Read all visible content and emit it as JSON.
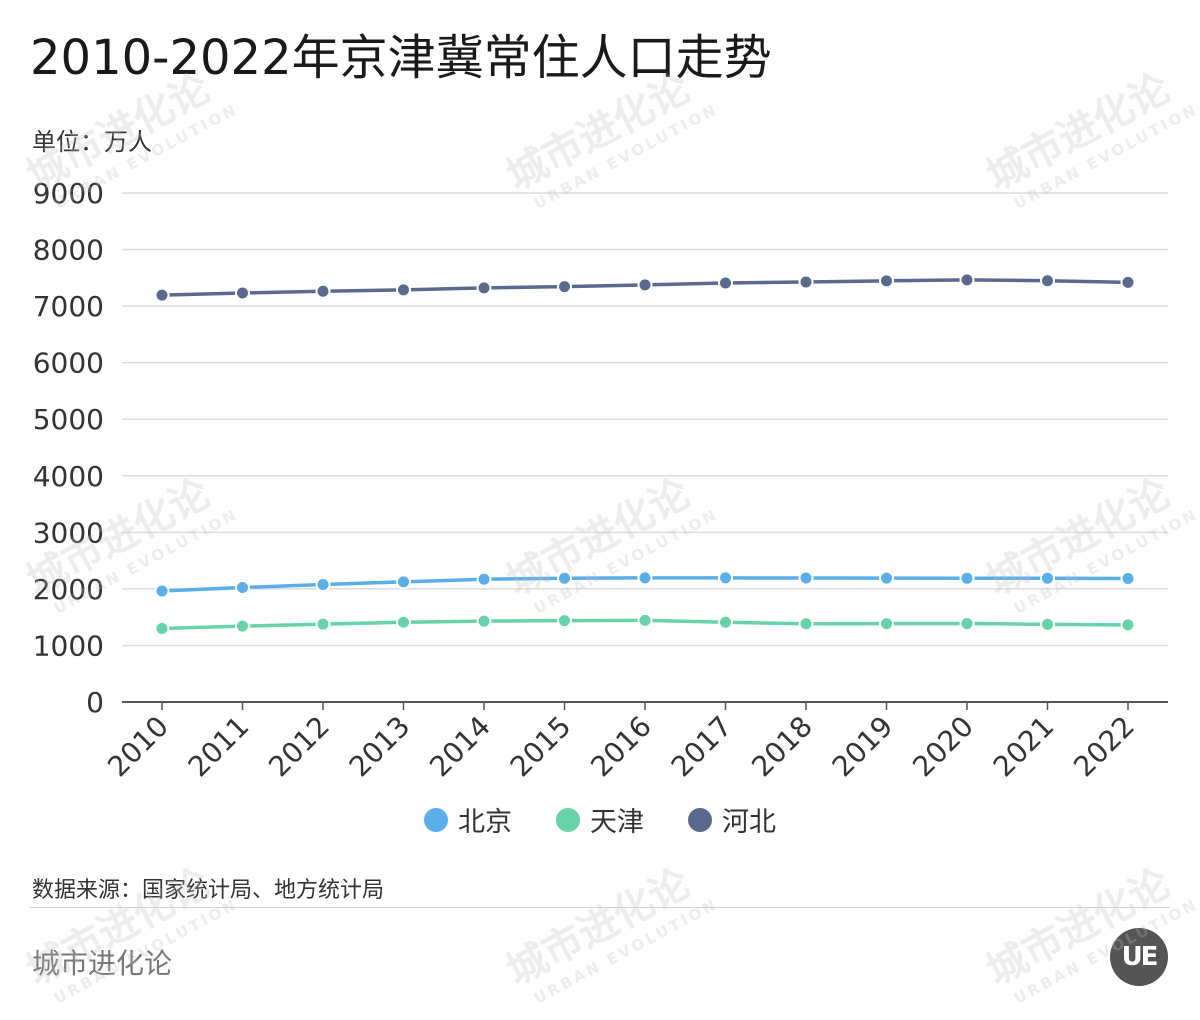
{
  "header": {
    "title": "2010-2022年京津冀常住人口走势",
    "unit": "单位：万人"
  },
  "chart_data": {
    "type": "line",
    "title": "2010-2022年京津冀常住人口走势",
    "ylabel": "单位：万人",
    "xlabel": "",
    "categories": [
      "2010",
      "2011",
      "2012",
      "2013",
      "2014",
      "2015",
      "2016",
      "2017",
      "2018",
      "2019",
      "2020",
      "2021",
      "2022"
    ],
    "ylim": [
      0,
      9000
    ],
    "yticks": [
      0,
      1000,
      2000,
      3000,
      4000,
      5000,
      6000,
      7000,
      8000,
      9000
    ],
    "grid": true,
    "legend_position": "bottom",
    "series": [
      {
        "name": "北京",
        "color": "#5aaeea",
        "values": [
          1962,
          2024,
          2078,
          2125,
          2171,
          2188,
          2195,
          2194,
          2192,
          2190,
          2189,
          2189,
          2184
        ]
      },
      {
        "name": "天津",
        "color": "#66d4a8",
        "values": [
          1299,
          1341,
          1378,
          1410,
          1429,
          1439,
          1443,
          1410,
          1383,
          1385,
          1387,
          1373,
          1363
        ]
      },
      {
        "name": "河北",
        "color": "#5a6a8e",
        "values": [
          7194,
          7232,
          7262,
          7288,
          7323,
          7345,
          7375,
          7409,
          7426,
          7447,
          7464,
          7448,
          7420
        ]
      }
    ]
  },
  "footer": {
    "source": "数据来源：国家统计局、地方统计局",
    "brand": "城市进化论",
    "logo_text": "UE"
  },
  "watermark": {
    "text": "城市进化论",
    "subtext": "URBAN EVOLUTION"
  }
}
